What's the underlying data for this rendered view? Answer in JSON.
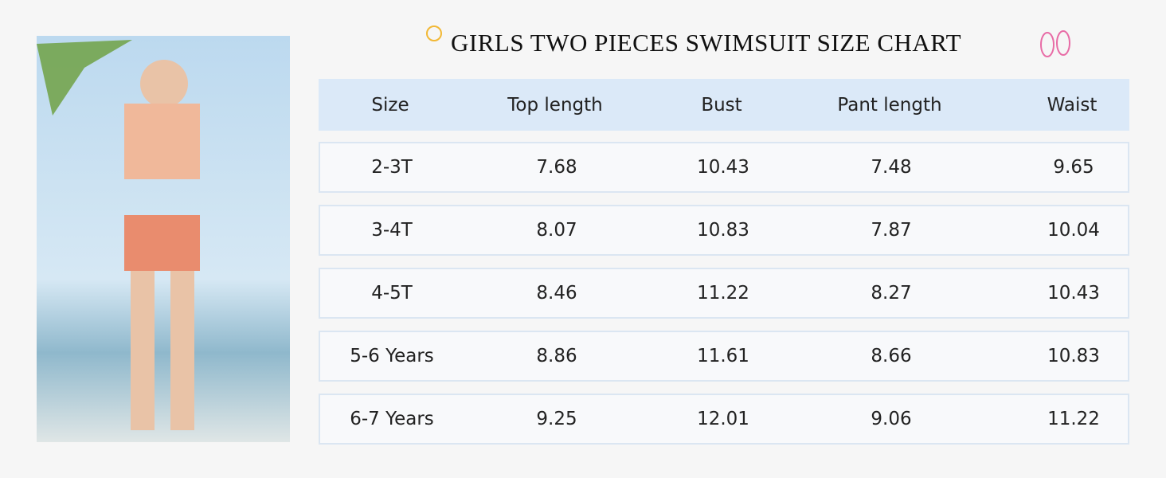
{
  "title": "GIRLS TWO PIECES SWIMSUIT SIZE CHART",
  "table": {
    "header": [
      "Size",
      "Top length",
      "Bust",
      "Pant length",
      "Waist"
    ],
    "rows": [
      [
        "2-3T",
        "7.68",
        "10.43",
        "7.48",
        "9.65"
      ],
      [
        "3-4T",
        "8.07",
        "10.83",
        "7.87",
        "10.04"
      ],
      [
        "4-5T",
        "8.46",
        "11.22",
        "8.27",
        "10.43"
      ],
      [
        "5-6 Years",
        "8.86",
        "11.61",
        "8.66",
        "10.83"
      ],
      [
        "6-7 Years",
        "9.25",
        "12.01",
        "9.06",
        "11.22"
      ]
    ]
  }
}
